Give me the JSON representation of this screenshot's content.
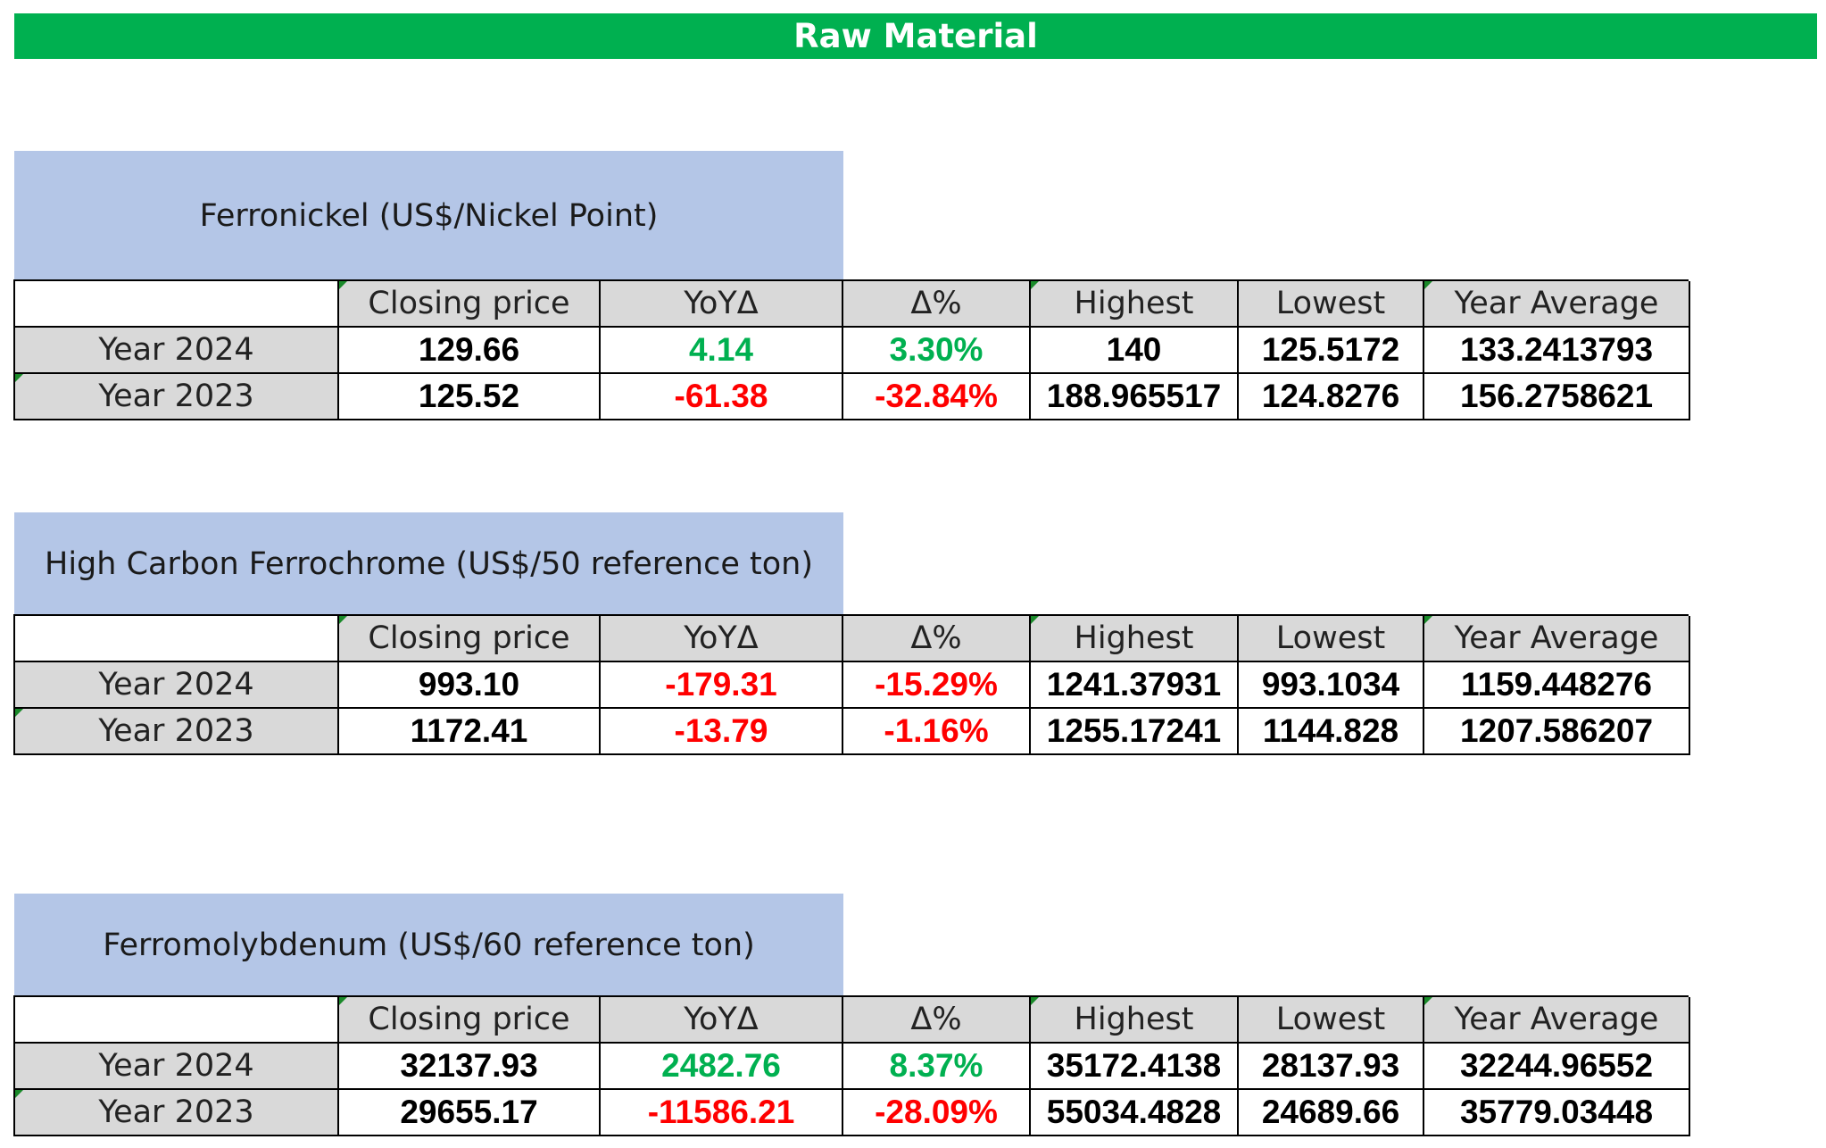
{
  "banner": {
    "title": "Raw Material"
  },
  "headers": [
    "",
    "Closing price",
    "YoYΔ",
    "Δ%",
    "Highest",
    "Lowest",
    "Year Average"
  ],
  "colors": {
    "banner": "#00b050",
    "title_bg": "#b4c6e7",
    "header_bg": "#d9d9d9",
    "positive": "#00b050",
    "negative": "#ff0000"
  },
  "tables": [
    {
      "title": "Ferronickel (US$/Nickel Point)",
      "rows": [
        {
          "label": "Year 2024",
          "closing": "129.66",
          "yoy": "4.14",
          "pct": "3.30%",
          "highest": "140",
          "lowest": "125.5172",
          "average": "133.2413793"
        },
        {
          "label": "Year 2023",
          "closing": "125.52",
          "yoy": "-61.38",
          "pct": "-32.84%",
          "highest": "188.965517",
          "lowest": "124.8276",
          "average": "156.2758621"
        }
      ]
    },
    {
      "title": "High Carbon Ferrochrome (US$/50 reference ton)",
      "rows": [
        {
          "label": "Year 2024",
          "closing": "993.10",
          "yoy": "-179.31",
          "pct": "-15.29%",
          "highest": "1241.37931",
          "lowest": "993.1034",
          "average": "1159.448276"
        },
        {
          "label": "Year 2023",
          "closing": "1172.41",
          "yoy": "-13.79",
          "pct": "-1.16%",
          "highest": "1255.17241",
          "lowest": "1144.828",
          "average": "1207.586207"
        }
      ]
    },
    {
      "title": "Ferromolybdenum (US$/60 reference ton)",
      "rows": [
        {
          "label": "Year 2024",
          "closing": "32137.93",
          "yoy": "2482.76",
          "pct": "8.37%",
          "highest": "35172.4138",
          "lowest": "28137.93",
          "average": "32244.96552"
        },
        {
          "label": "Year 2023",
          "closing": "29655.17",
          "yoy": "-11586.21",
          "pct": "-28.09%",
          "highest": "55034.4828",
          "lowest": "24689.66",
          "average": "35779.03448"
        }
      ]
    }
  ]
}
